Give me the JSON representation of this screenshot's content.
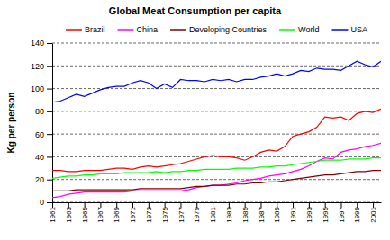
{
  "chart_data": {
    "type": "line",
    "title": "Global Meat Consumption per capita",
    "y_label": "Kg per person",
    "x": [
      1961,
      1962,
      1963,
      1964,
      1965,
      1966,
      1967,
      1968,
      1969,
      1970,
      1971,
      1972,
      1973,
      1974,
      1975,
      1976,
      1977,
      1978,
      1979,
      1980,
      1981,
      1982,
      1983,
      1984,
      1985,
      1986,
      1987,
      1988,
      1989,
      1990,
      1991,
      1992,
      1993,
      1994,
      1995,
      1996,
      1997,
      1998,
      1999,
      2000,
      2001,
      2002
    ],
    "xlim": [
      1961,
      2002
    ],
    "xticks": [
      1961,
      1963,
      1965,
      1967,
      1969,
      1971,
      1973,
      1975,
      1977,
      1979,
      1981,
      1983,
      1985,
      1987,
      1989,
      1991,
      1993,
      1995,
      1997,
      1999,
      2001
    ],
    "ylim": [
      0,
      140
    ],
    "yticks": [
      0,
      20,
      40,
      60,
      80,
      100,
      120,
      140
    ],
    "grid": true,
    "legend": "top",
    "series": [
      {
        "name": "Brazil",
        "color": "#ff0000",
        "values": [
          28,
          28,
          27,
          27,
          28,
          28,
          28,
          29,
          30,
          30,
          29,
          31,
          32,
          31,
          32,
          33,
          34,
          36,
          38,
          40,
          41,
          40,
          40,
          39,
          37,
          40,
          44,
          46,
          45,
          49,
          58,
          60,
          62,
          66,
          75,
          74,
          75,
          72,
          78,
          80,
          79,
          82
        ]
      },
      {
        "name": "China",
        "color": "#ff00ff",
        "values": [
          4,
          5,
          7,
          8,
          9,
          9,
          9,
          9,
          9,
          9,
          10,
          10,
          10,
          10,
          10,
          10,
          10,
          11,
          13,
          14,
          15,
          15,
          16,
          17,
          19,
          20,
          21,
          23,
          24,
          25,
          27,
          29,
          32,
          36,
          39,
          38,
          44,
          46,
          47,
          49,
          50,
          52
        ]
      },
      {
        "name": "Developing Countries",
        "color": "#800000",
        "values": [
          10,
          10,
          10,
          11,
          11,
          11,
          11,
          11,
          11,
          11,
          11,
          12,
          12,
          12,
          12,
          12,
          12,
          13,
          14,
          14,
          15,
          15,
          15,
          16,
          16,
          17,
          17,
          18,
          18,
          19,
          20,
          21,
          22,
          23,
          24,
          24,
          25,
          26,
          27,
          27,
          28,
          28
        ]
      },
      {
        "name": "World",
        "color": "#00ff00",
        "values": [
          21,
          22,
          23,
          23,
          24,
          24,
          25,
          25,
          25,
          26,
          26,
          26,
          26,
          27,
          26,
          27,
          27,
          28,
          28,
          29,
          29,
          29,
          29,
          30,
          30,
          30,
          31,
          31,
          32,
          32,
          33,
          34,
          35,
          36,
          37,
          37,
          37,
          38,
          38,
          38,
          39,
          39
        ]
      },
      {
        "name": "USA",
        "color": "#0000ff",
        "values": [
          88,
          89,
          92,
          95,
          93,
          96,
          99,
          101,
          102,
          102,
          105,
          107,
          105,
          100,
          104,
          101,
          108,
          107,
          107,
          106,
          108,
          107,
          108,
          106,
          108,
          108,
          110,
          111,
          113,
          111,
          113,
          116,
          115,
          118,
          117,
          117,
          116,
          120,
          124,
          121,
          119,
          124
        ]
      }
    ]
  }
}
